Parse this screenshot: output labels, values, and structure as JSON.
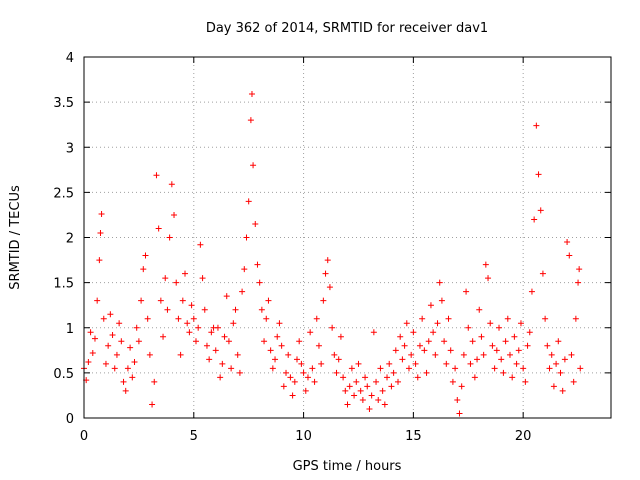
{
  "chart_data": {
    "type": "scatter",
    "title": "Day 362 of 2014, SRMTID for receiver dav1",
    "xlabel": "GPS time / hours",
    "ylabel": "SRMTID / TECUs",
    "xlim": [
      0,
      24
    ],
    "ylim": [
      0,
      4
    ],
    "xticks": [
      "0",
      "5",
      "10",
      "15",
      "20"
    ],
    "yticks": [
      "0",
      "0.5",
      "1",
      "1.5",
      "2",
      "2.5",
      "3",
      "3.5",
      "4"
    ],
    "grid": true,
    "marker": "+",
    "color": "#ff0000",
    "series": [
      {
        "name": "SRMTID",
        "note": "representative subset of plotted points (hours, TECU)",
        "points": [
          [
            0.0,
            0.55
          ],
          [
            0.1,
            0.42
          ],
          [
            0.2,
            0.62
          ],
          [
            0.3,
            0.95
          ],
          [
            0.4,
            0.72
          ],
          [
            0.5,
            0.88
          ],
          [
            0.6,
            1.3
          ],
          [
            0.7,
            1.75
          ],
          [
            0.75,
            2.05
          ],
          [
            0.8,
            2.26
          ],
          [
            0.9,
            1.1
          ],
          [
            1.0,
            0.6
          ],
          [
            1.1,
            0.8
          ],
          [
            1.2,
            1.15
          ],
          [
            1.3,
            0.92
          ],
          [
            1.4,
            0.55
          ],
          [
            1.5,
            0.7
          ],
          [
            1.6,
            1.05
          ],
          [
            1.7,
            0.85
          ],
          [
            1.8,
            0.4
          ],
          [
            1.9,
            0.3
          ],
          [
            2.0,
            0.55
          ],
          [
            2.1,
            0.78
          ],
          [
            2.2,
            0.45
          ],
          [
            2.3,
            0.62
          ],
          [
            2.4,
            1.0
          ],
          [
            2.5,
            0.85
          ],
          [
            2.6,
            1.3
          ],
          [
            2.7,
            1.65
          ],
          [
            2.8,
            1.8
          ],
          [
            2.9,
            1.1
          ],
          [
            3.0,
            0.7
          ],
          [
            3.1,
            0.15
          ],
          [
            3.2,
            0.4
          ],
          [
            3.3,
            2.69
          ],
          [
            3.4,
            2.1
          ],
          [
            3.5,
            1.3
          ],
          [
            3.6,
            0.9
          ],
          [
            3.7,
            1.55
          ],
          [
            3.8,
            1.2
          ],
          [
            3.9,
            2.0
          ],
          [
            4.0,
            2.59
          ],
          [
            4.1,
            2.25
          ],
          [
            4.2,
            1.5
          ],
          [
            4.3,
            1.1
          ],
          [
            4.4,
            0.7
          ],
          [
            4.5,
            1.3
          ],
          [
            4.6,
            1.6
          ],
          [
            4.7,
            1.05
          ],
          [
            4.8,
            0.95
          ],
          [
            4.9,
            1.25
          ],
          [
            5.0,
            1.1
          ],
          [
            5.1,
            0.85
          ],
          [
            5.2,
            1.0
          ],
          [
            5.3,
            1.92
          ],
          [
            5.4,
            1.55
          ],
          [
            5.5,
            1.2
          ],
          [
            5.6,
            0.8
          ],
          [
            5.7,
            0.65
          ],
          [
            5.8,
            0.95
          ],
          [
            5.9,
            1.0
          ],
          [
            6.0,
            0.75
          ],
          [
            6.1,
            1.0
          ],
          [
            6.2,
            0.45
          ],
          [
            6.3,
            0.6
          ],
          [
            6.4,
            0.9
          ],
          [
            6.5,
            1.35
          ],
          [
            6.6,
            0.85
          ],
          [
            6.7,
            0.55
          ],
          [
            6.8,
            1.05
          ],
          [
            6.9,
            1.2
          ],
          [
            7.0,
            0.7
          ],
          [
            7.1,
            0.5
          ],
          [
            7.2,
            1.4
          ],
          [
            7.3,
            1.65
          ],
          [
            7.4,
            2.0
          ],
          [
            7.5,
            2.4
          ],
          [
            7.6,
            3.3
          ],
          [
            7.65,
            3.59
          ],
          [
            7.7,
            2.8
          ],
          [
            7.8,
            2.15
          ],
          [
            7.9,
            1.7
          ],
          [
            8.0,
            1.5
          ],
          [
            8.1,
            1.2
          ],
          [
            8.2,
            0.85
          ],
          [
            8.3,
            1.1
          ],
          [
            8.4,
            1.3
          ],
          [
            8.5,
            0.75
          ],
          [
            8.6,
            0.55
          ],
          [
            8.7,
            0.65
          ],
          [
            8.8,
            0.9
          ],
          [
            8.9,
            1.05
          ],
          [
            9.0,
            0.8
          ],
          [
            9.1,
            0.35
          ],
          [
            9.2,
            0.5
          ],
          [
            9.3,
            0.7
          ],
          [
            9.4,
            0.45
          ],
          [
            9.5,
            0.25
          ],
          [
            9.6,
            0.4
          ],
          [
            9.7,
            0.65
          ],
          [
            9.8,
            0.85
          ],
          [
            9.9,
            0.6
          ],
          [
            10.0,
            0.5
          ],
          [
            10.1,
            0.3
          ],
          [
            10.2,
            0.45
          ],
          [
            10.3,
            0.95
          ],
          [
            10.4,
            0.55
          ],
          [
            10.5,
            0.4
          ],
          [
            10.6,
            1.1
          ],
          [
            10.7,
            0.8
          ],
          [
            10.8,
            0.6
          ],
          [
            10.9,
            1.3
          ],
          [
            11.0,
            1.6
          ],
          [
            11.1,
            1.75
          ],
          [
            11.2,
            1.45
          ],
          [
            11.3,
            1.0
          ],
          [
            11.4,
            0.7
          ],
          [
            11.5,
            0.5
          ],
          [
            11.6,
            0.65
          ],
          [
            11.7,
            0.9
          ],
          [
            11.8,
            0.45
          ],
          [
            11.9,
            0.3
          ],
          [
            12.0,
            0.15
          ],
          [
            12.1,
            0.35
          ],
          [
            12.2,
            0.55
          ],
          [
            12.3,
            0.25
          ],
          [
            12.4,
            0.4
          ],
          [
            12.5,
            0.6
          ],
          [
            12.6,
            0.3
          ],
          [
            12.7,
            0.2
          ],
          [
            12.8,
            0.45
          ],
          [
            12.9,
            0.35
          ],
          [
            13.0,
            0.1
          ],
          [
            13.1,
            0.25
          ],
          [
            13.2,
            0.95
          ],
          [
            13.3,
            0.4
          ],
          [
            13.4,
            0.2
          ],
          [
            13.5,
            0.55
          ],
          [
            13.6,
            0.3
          ],
          [
            13.7,
            0.15
          ],
          [
            13.8,
            0.45
          ],
          [
            13.9,
            0.6
          ],
          [
            14.0,
            0.35
          ],
          [
            14.1,
            0.5
          ],
          [
            14.2,
            0.75
          ],
          [
            14.3,
            0.4
          ],
          [
            14.4,
            0.9
          ],
          [
            14.5,
            0.65
          ],
          [
            14.6,
            0.8
          ],
          [
            14.7,
            1.05
          ],
          [
            14.8,
            0.55
          ],
          [
            14.9,
            0.7
          ],
          [
            15.0,
            0.95
          ],
          [
            15.1,
            0.6
          ],
          [
            15.2,
            0.45
          ],
          [
            15.3,
            0.8
          ],
          [
            15.4,
            1.1
          ],
          [
            15.5,
            0.75
          ],
          [
            15.6,
            0.5
          ],
          [
            15.7,
            0.85
          ],
          [
            15.8,
            1.25
          ],
          [
            15.9,
            0.95
          ],
          [
            16.0,
            0.7
          ],
          [
            16.1,
            1.05
          ],
          [
            16.2,
            1.5
          ],
          [
            16.3,
            1.3
          ],
          [
            16.4,
            0.85
          ],
          [
            16.5,
            0.6
          ],
          [
            16.6,
            1.1
          ],
          [
            16.7,
            0.75
          ],
          [
            16.8,
            0.4
          ],
          [
            16.9,
            0.55
          ],
          [
            17.0,
            0.2
          ],
          [
            17.1,
            0.05
          ],
          [
            17.2,
            0.35
          ],
          [
            17.3,
            0.7
          ],
          [
            17.4,
            1.4
          ],
          [
            17.5,
            1.0
          ],
          [
            17.6,
            0.6
          ],
          [
            17.7,
            0.85
          ],
          [
            17.8,
            0.45
          ],
          [
            17.9,
            0.65
          ],
          [
            18.0,
            1.2
          ],
          [
            18.1,
            0.9
          ],
          [
            18.2,
            0.7
          ],
          [
            18.3,
            1.7
          ],
          [
            18.4,
            1.55
          ],
          [
            18.5,
            1.05
          ],
          [
            18.6,
            0.8
          ],
          [
            18.7,
            0.55
          ],
          [
            18.8,
            0.75
          ],
          [
            18.9,
            1.0
          ],
          [
            19.0,
            0.65
          ],
          [
            19.1,
            0.5
          ],
          [
            19.2,
            0.85
          ],
          [
            19.3,
            1.1
          ],
          [
            19.4,
            0.7
          ],
          [
            19.5,
            0.45
          ],
          [
            19.6,
            0.9
          ],
          [
            19.7,
            0.6
          ],
          [
            19.8,
            0.75
          ],
          [
            19.9,
            1.05
          ],
          [
            20.0,
            0.55
          ],
          [
            20.1,
            0.4
          ],
          [
            20.2,
            0.8
          ],
          [
            20.3,
            0.95
          ],
          [
            20.4,
            1.4
          ],
          [
            20.5,
            2.2
          ],
          [
            20.6,
            3.24
          ],
          [
            20.7,
            2.7
          ],
          [
            20.8,
            2.3
          ],
          [
            20.9,
            1.6
          ],
          [
            21.0,
            1.1
          ],
          [
            21.1,
            0.8
          ],
          [
            21.2,
            0.55
          ],
          [
            21.3,
            0.7
          ],
          [
            21.4,
            0.35
          ],
          [
            21.5,
            0.6
          ],
          [
            21.6,
            0.85
          ],
          [
            21.7,
            0.5
          ],
          [
            21.8,
            0.3
          ],
          [
            21.9,
            0.65
          ],
          [
            22.0,
            1.95
          ],
          [
            22.1,
            1.8
          ],
          [
            22.2,
            0.7
          ],
          [
            22.3,
            0.4
          ],
          [
            22.4,
            1.1
          ],
          [
            22.5,
            1.5
          ],
          [
            22.55,
            1.65
          ],
          [
            22.6,
            0.55
          ]
        ]
      }
    ]
  }
}
